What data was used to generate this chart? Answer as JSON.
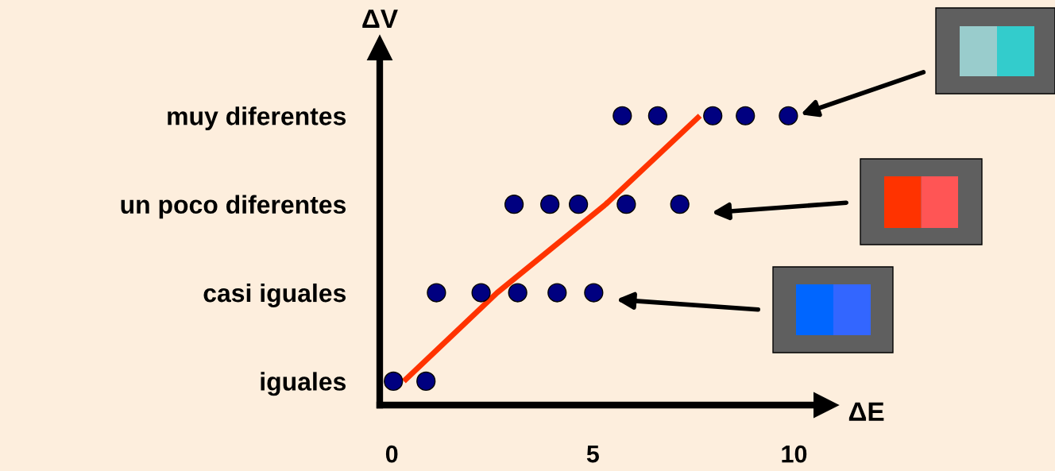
{
  "chart_data": {
    "type": "scatter",
    "orientation": "horizontal",
    "xlabel": "ΔE",
    "ylabel": "ΔV",
    "categories": [
      "muy diferentes",
      "un poco diferentes",
      "casi iguales",
      "iguales"
    ],
    "xlim": [
      -0.3,
      10.8
    ],
    "xticks": [
      0,
      5,
      10
    ],
    "grid": false,
    "legend": false,
    "marker": "circle",
    "series": [
      {
        "color": "#000080",
        "x": [
          "iguales",
          "iguales",
          "casi iguales",
          "casi iguales",
          "casi iguales",
          "casi iguales",
          "casi iguales",
          "un poco diferentes",
          "un poco diferentes",
          "un poco diferentes",
          "un poco diferentes",
          "un poco diferentes",
          "muy diferentes",
          "muy diferentes",
          "muy diferentes",
          "muy diferentes",
          "muy diferentes"
        ],
        "values": [
          0.04,
          0.85,
          1.11,
          2.22,
          3.13,
          4.11,
          5.02,
          3.04,
          3.93,
          4.64,
          5.83,
          7.16,
          5.73,
          6.61,
          7.98,
          8.79,
          9.86
        ]
      },
      {
        "type": "line",
        "color": "#ff3300",
        "marker": "none",
        "values": [
          7.66,
          5.32,
          2.62,
          0.3
        ]
      }
    ]
  }
}
